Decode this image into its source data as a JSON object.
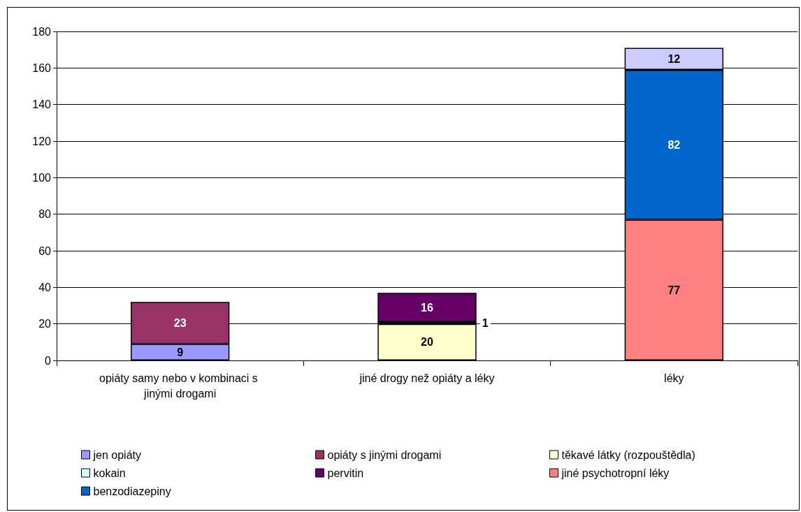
{
  "chart_data": {
    "type": "bar",
    "stacked": true,
    "data_labels": true,
    "grid": "y",
    "legend": "bottom",
    "categories": [
      "opiáty samy nebo v kombinaci s jinými drogami",
      "jiné drogy než opiáty a léky",
      "léky"
    ],
    "ylim": [
      0,
      180
    ],
    "yticks": [
      0,
      20,
      40,
      60,
      80,
      100,
      120,
      140,
      160,
      180
    ],
    "series": [
      {
        "name": "jen opiáty",
        "color": "#9999ff",
        "values": [
          9,
          null,
          null
        ]
      },
      {
        "name": "opiáty s jinými drogami",
        "color": "#993366",
        "values": [
          23,
          null,
          null
        ]
      },
      {
        "name": "těkavé látky (rozpouštědla)",
        "color": "#ffffcc",
        "values": [
          null,
          20,
          null
        ]
      },
      {
        "name": "kokain",
        "color": "#ccffff",
        "values": [
          null,
          1,
          null
        ]
      },
      {
        "name": "pervitin",
        "color": "#660066",
        "values": [
          null,
          16,
          null
        ]
      },
      {
        "name": "jiné psychotropní léky",
        "color": "#ff8080",
        "values": [
          null,
          null,
          77
        ]
      },
      {
        "name": "benzodiazepiny",
        "color": "#0066cc",
        "values": [
          null,
          null,
          82
        ]
      },
      {
        "color": "#ccccff",
        "values": [
          null,
          null,
          12
        ]
      }
    ]
  }
}
